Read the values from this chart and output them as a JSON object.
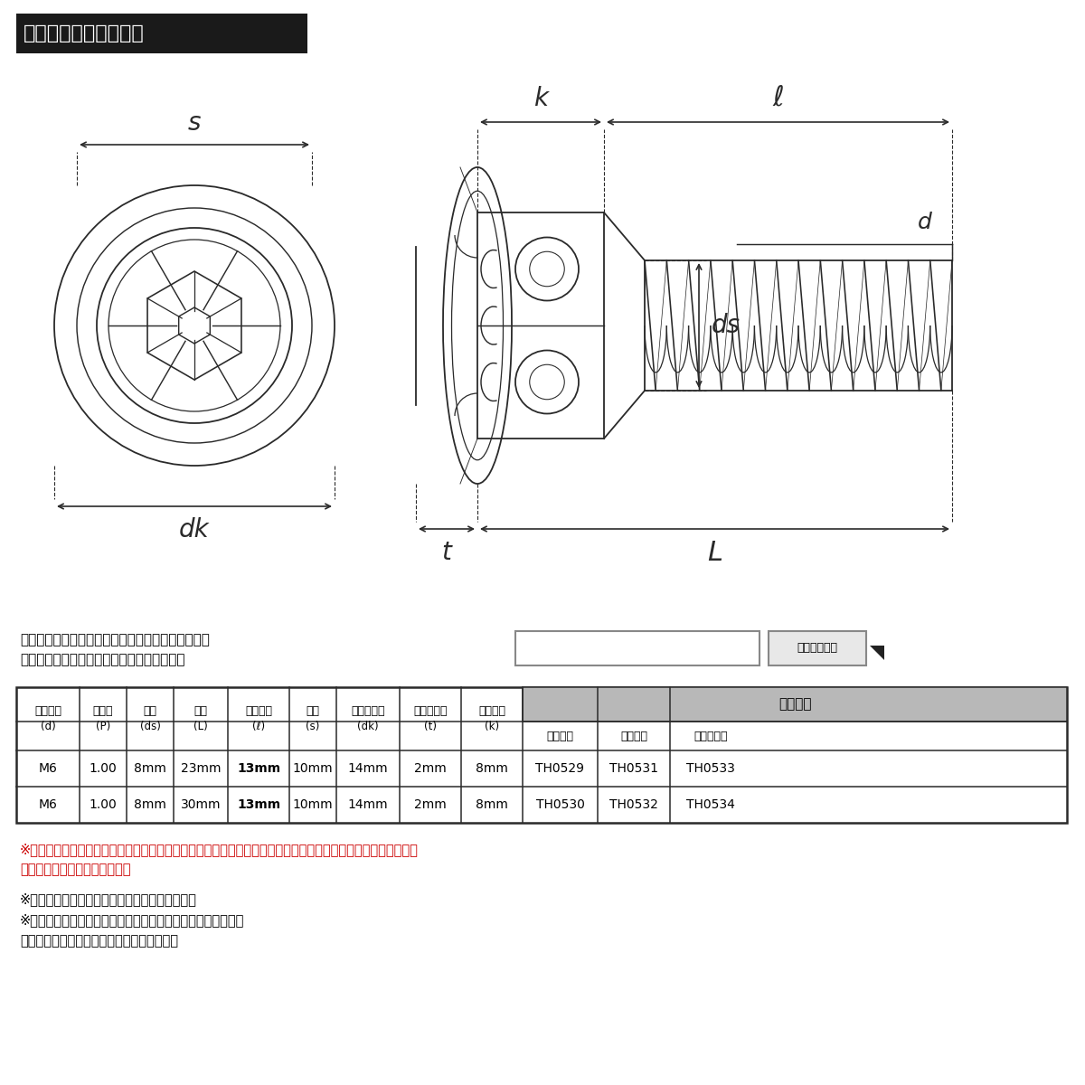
{
  "bg_color": "#ffffff",
  "title_text": "ラインアップ＆サイズ",
  "title_bg": "#1a1a1a",
  "title_fg": "#ffffff",
  "search_label_line1": "ストア内検索に商品番号を入力していただけますと",
  "search_label_line2": "お探しの商品に素早くアクセスができます。",
  "search_btn": "ストア内検索",
  "col_header_span": "当店品番",
  "header_labels_top": [
    "ネジ呼び",
    "ピッチ",
    "軸径",
    "長さ",
    "ネジ長さ",
    "平径",
    "フランジ径",
    "フランジ厚",
    "頭部高さ"
  ],
  "header_labels_bot": [
    "(d)",
    "(P)",
    "(ds)",
    "(L)",
    "(ℓ)",
    "(s)",
    "(dk)",
    "(t)",
    "(k)"
  ],
  "sub_labels": [
    "シルバー",
    "ゴールド",
    "焼きチタン"
  ],
  "table_rows": [
    [
      "M6",
      "1.00",
      "8mm",
      "23mm",
      "13mm",
      "10mm",
      "14mm",
      "2mm",
      "8mm",
      "TH0529",
      "TH0531",
      "TH0533"
    ],
    [
      "M6",
      "1.00",
      "8mm",
      "30mm",
      "13mm",
      "10mm",
      "14mm",
      "2mm",
      "8mm",
      "TH0530",
      "TH0532",
      "TH0534"
    ]
  ],
  "note1_red": "※記載のサイズは平均値です。手作業で制作しておりますので、サイズやカラーに若干の個体差がございます。",
  "note1_red2": "　ご理解の上、ご購入下さい。",
  "note2": "※個体差により着色が異なる場合がございます。",
  "note3": "※在庫管理等の都合上、ご購入後の商品の変更は出来ません。",
  "note4": "　ご購入前に必ずご確認をお願い致します。",
  "note_color": "#cc0000",
  "note_black": "#000000",
  "line_color": "#2a2a2a"
}
